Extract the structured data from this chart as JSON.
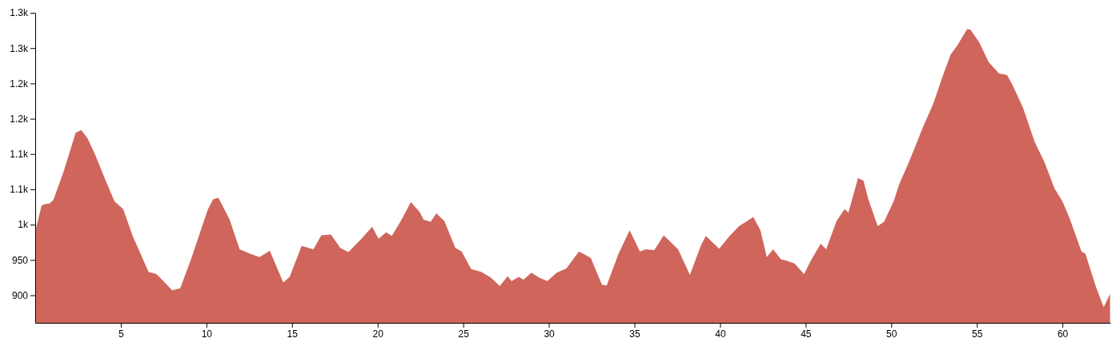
{
  "chart_data": {
    "type": "area",
    "color": "#d0655b",
    "x": [
      0.05,
      0.37,
      0.56,
      0.83,
      1.06,
      1.67,
      2.36,
      2.69,
      3.06,
      3.52,
      4.07,
      4.63,
      5.14,
      5.69,
      6.62,
      7.08,
      7.45,
      8.0,
      8.47,
      9.07,
      10.09,
      10.4,
      10.7,
      11.34,
      11.94,
      12.55,
      13.1,
      13.7,
      14.49,
      14.86,
      15.56,
      15.97,
      16.25,
      16.71,
      17.27,
      17.82,
      18.29,
      18.98,
      19.68,
      20.05,
      20.5,
      20.83,
      21.35,
      21.94,
      22.45,
      22.69,
      23.1,
      23.43,
      23.9,
      24.54,
      24.91,
      25.46,
      26.06,
      26.62,
      27.13,
      27.59,
      27.82,
      28.24,
      28.52,
      28.98,
      29.44,
      29.91,
      30.46,
      31.02,
      31.76,
      32.45,
      33.1,
      33.38,
      34.07,
      34.72,
      35.32,
      35.65,
      36.16,
      36.71,
      37.55,
      38.24,
      38.89,
      39.17,
      39.95,
      40.56,
      41.11,
      41.57,
      41.94,
      42.36,
      42.73,
      43.1,
      43.56,
      43.89,
      44.35,
      44.91,
      45.28,
      45.88,
      46.2,
      46.8,
      47.27,
      47.5,
      48.06,
      48.38,
      48.66,
      49.21,
      49.58,
      50.14,
      50.46,
      51.06,
      51.85,
      52.45,
      53.06,
      53.47,
      53.84,
      54.44,
      54.63,
      55.14,
      55.69,
      56.3,
      56.76,
      57.08,
      57.69,
      58.38,
      58.94,
      59.54,
      60.0,
      60.42,
      61.11,
      61.34,
      61.94,
      62.41,
      62.78
    ],
    "values": [
      995,
      1027,
      1029,
      1030,
      1035,
      1076,
      1130,
      1134,
      1122,
      1098,
      1065,
      1033,
      1022,
      984,
      933,
      930,
      921,
      907,
      910,
      949,
      1022,
      1036,
      1038,
      1008,
      965,
      959,
      954,
      963,
      918,
      926,
      970,
      967,
      965,
      985,
      986,
      967,
      961,
      978,
      997,
      980,
      989,
      984,
      1005,
      1032,
      1018,
      1007,
      1004,
      1016,
      1005,
      967,
      962,
      937,
      933,
      925,
      913,
      927,
      920,
      926,
      922,
      932,
      925,
      920,
      932,
      938,
      962,
      953,
      915,
      914,
      959,
      992,
      962,
      965,
      964,
      985,
      965,
      929,
      971,
      984,
      966,
      984,
      998,
      1005,
      1011,
      992,
      954,
      965,
      951,
      949,
      945,
      930,
      948,
      973,
      965,
      1005,
      1022,
      1017,
      1066,
      1062,
      1036,
      998,
      1004,
      1033,
      1057,
      1090,
      1138,
      1171,
      1214,
      1241,
      1253,
      1277,
      1276,
      1258,
      1230,
      1214,
      1212,
      1198,
      1166,
      1117,
      1089,
      1051,
      1033,
      1009,
      962,
      959,
      913,
      883,
      902
    ],
    "xlim": [
      0,
      62.8
    ],
    "ylim": [
      861,
      1300
    ],
    "xticks": [
      5,
      10,
      15,
      20,
      25,
      30,
      35,
      40,
      45,
      50,
      55,
      60
    ],
    "yticks": [
      900,
      950,
      {
        "value": 1000,
        "label": "1k"
      },
      {
        "value": 1050,
        "label": "1.1k"
      },
      {
        "value": 1100,
        "label": "1.1k"
      },
      {
        "value": 1150,
        "label": "1.2k"
      },
      {
        "value": 1200,
        "label": "1.2k"
      },
      {
        "value": 1250,
        "label": "1.3k"
      },
      {
        "value": 1300,
        "label": "1.3k"
      }
    ],
    "grid": false
  }
}
